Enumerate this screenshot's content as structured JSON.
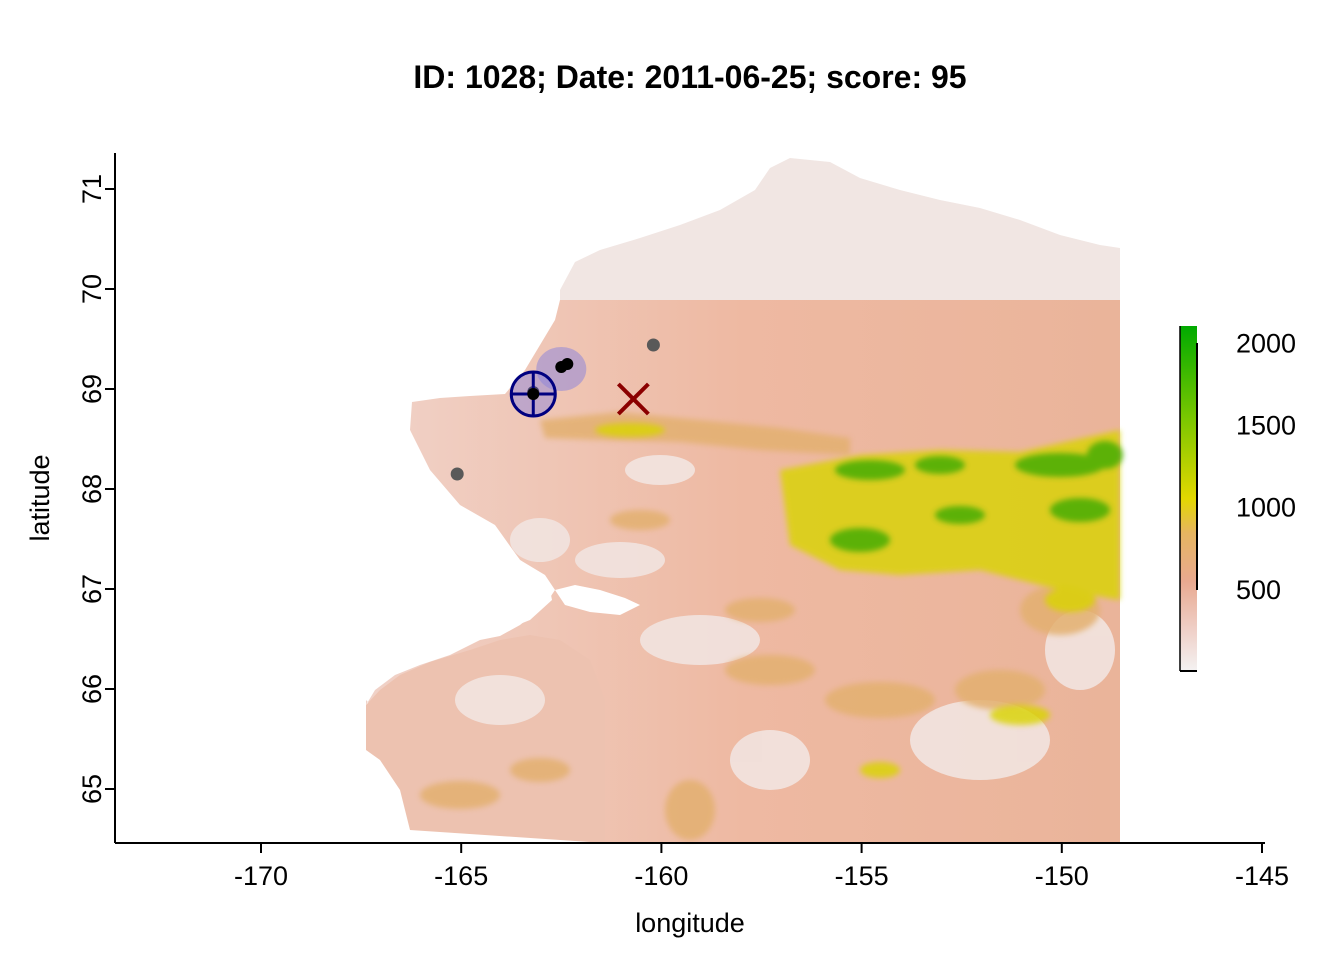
{
  "title": "ID: 1028;  Date: 2011-06-25;  score: 95",
  "chart_data": {
    "type": "map",
    "title": "ID: 1028;  Date: 2011-06-25;  score: 95",
    "xlabel": "longitude",
    "ylabel": "latitude",
    "xlim": [
      -174.5,
      -144.5
    ],
    "ylim": [
      64.45,
      71.35
    ],
    "x_ticks": [
      -170,
      -165,
      -160,
      -155,
      -150,
      -145
    ],
    "y_ticks": [
      65,
      66,
      67,
      68,
      69,
      70,
      71
    ],
    "colorbar": {
      "range": [
        0,
        2100
      ],
      "ticks": [
        500,
        1000,
        1500,
        2000
      ],
      "colors": [
        "#f2f2f2",
        "#e8a990",
        "#e6b560",
        "#e3e000",
        "#00aa00"
      ]
    },
    "colors": {
      "estimate_marker": "#000080",
      "estimate_fill": "#8f86d9",
      "true_location_marker": "#8b0000",
      "points": "#595959",
      "points_dark": "#000000"
    },
    "markers": {
      "estimate": {
        "lon": -163.2,
        "lat": 68.95
      },
      "true_location": {
        "lon": -160.7,
        "lat": 68.9
      },
      "uncertainty_ellipse": {
        "lon": -162.5,
        "lat": 69.2
      }
    },
    "points": [
      {
        "lon": -162.5,
        "lat": 69.22,
        "dark": true
      },
      {
        "lon": -162.35,
        "lat": 69.25,
        "dark": true
      },
      {
        "lon": -163.2,
        "lat": 68.97,
        "dark": true
      },
      {
        "lon": -160.2,
        "lat": 69.44,
        "dark": false
      },
      {
        "lon": -165.1,
        "lat": 68.15,
        "dark": false
      }
    ]
  }
}
